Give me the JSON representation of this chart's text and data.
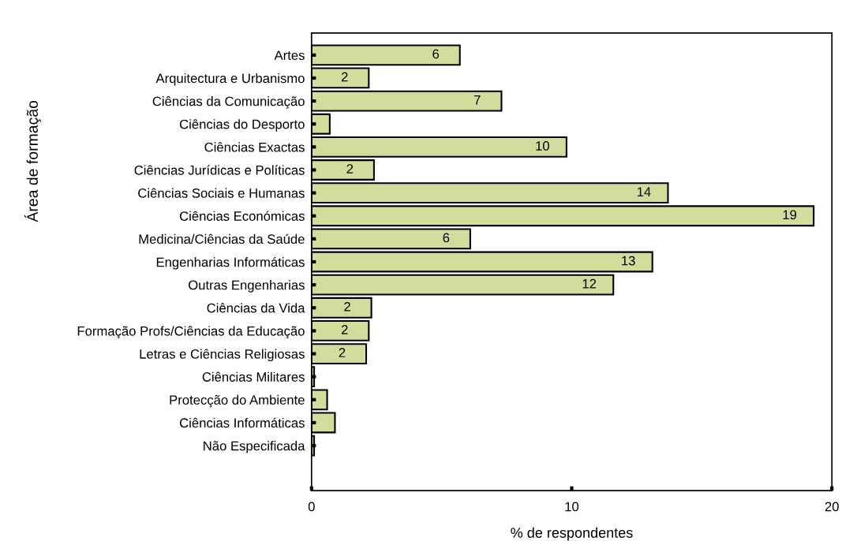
{
  "chart_data": {
    "type": "bar",
    "orientation": "horizontal",
    "xlabel": "% de respondentes",
    "ylabel": "Área de formação",
    "categories": [
      "Artes",
      "Arquitectura e Urbanismo",
      "Ciências da Comunicação",
      "Ciências do Desporto",
      "Ciências Exactas",
      "Ciências Jurídicas e Políticas",
      "Ciências Sociais e Humanas",
      "Ciências Económicas",
      "Medicina/Ciências da Saúde",
      "Engenharias Informáticas",
      "Outras Engenharias",
      "Ciências da Vida",
      "Formação Profs/Ciências da Educação",
      "Letras e Ciências Religiosas",
      "Ciências Militares",
      "Protecção do Ambiente",
      "Ciências Informáticas",
      "Não Especificada"
    ],
    "values": [
      5.7,
      2.2,
      7.3,
      0.7,
      9.8,
      2.4,
      13.7,
      19.3,
      6.1,
      13.1,
      11.6,
      2.3,
      2.2,
      2.1,
      0.1,
      0.6,
      0.9,
      0.1
    ],
    "value_labels": [
      "6",
      "2",
      "7",
      null,
      "10",
      "2",
      "14",
      "19",
      "6",
      "13",
      "12",
      "2",
      "2",
      "2",
      null,
      null,
      null,
      null
    ],
    "color": "#d3dc9c",
    "xlim": [
      0,
      20
    ],
    "xticks": [
      0,
      10,
      20
    ],
    "grid": false
  }
}
